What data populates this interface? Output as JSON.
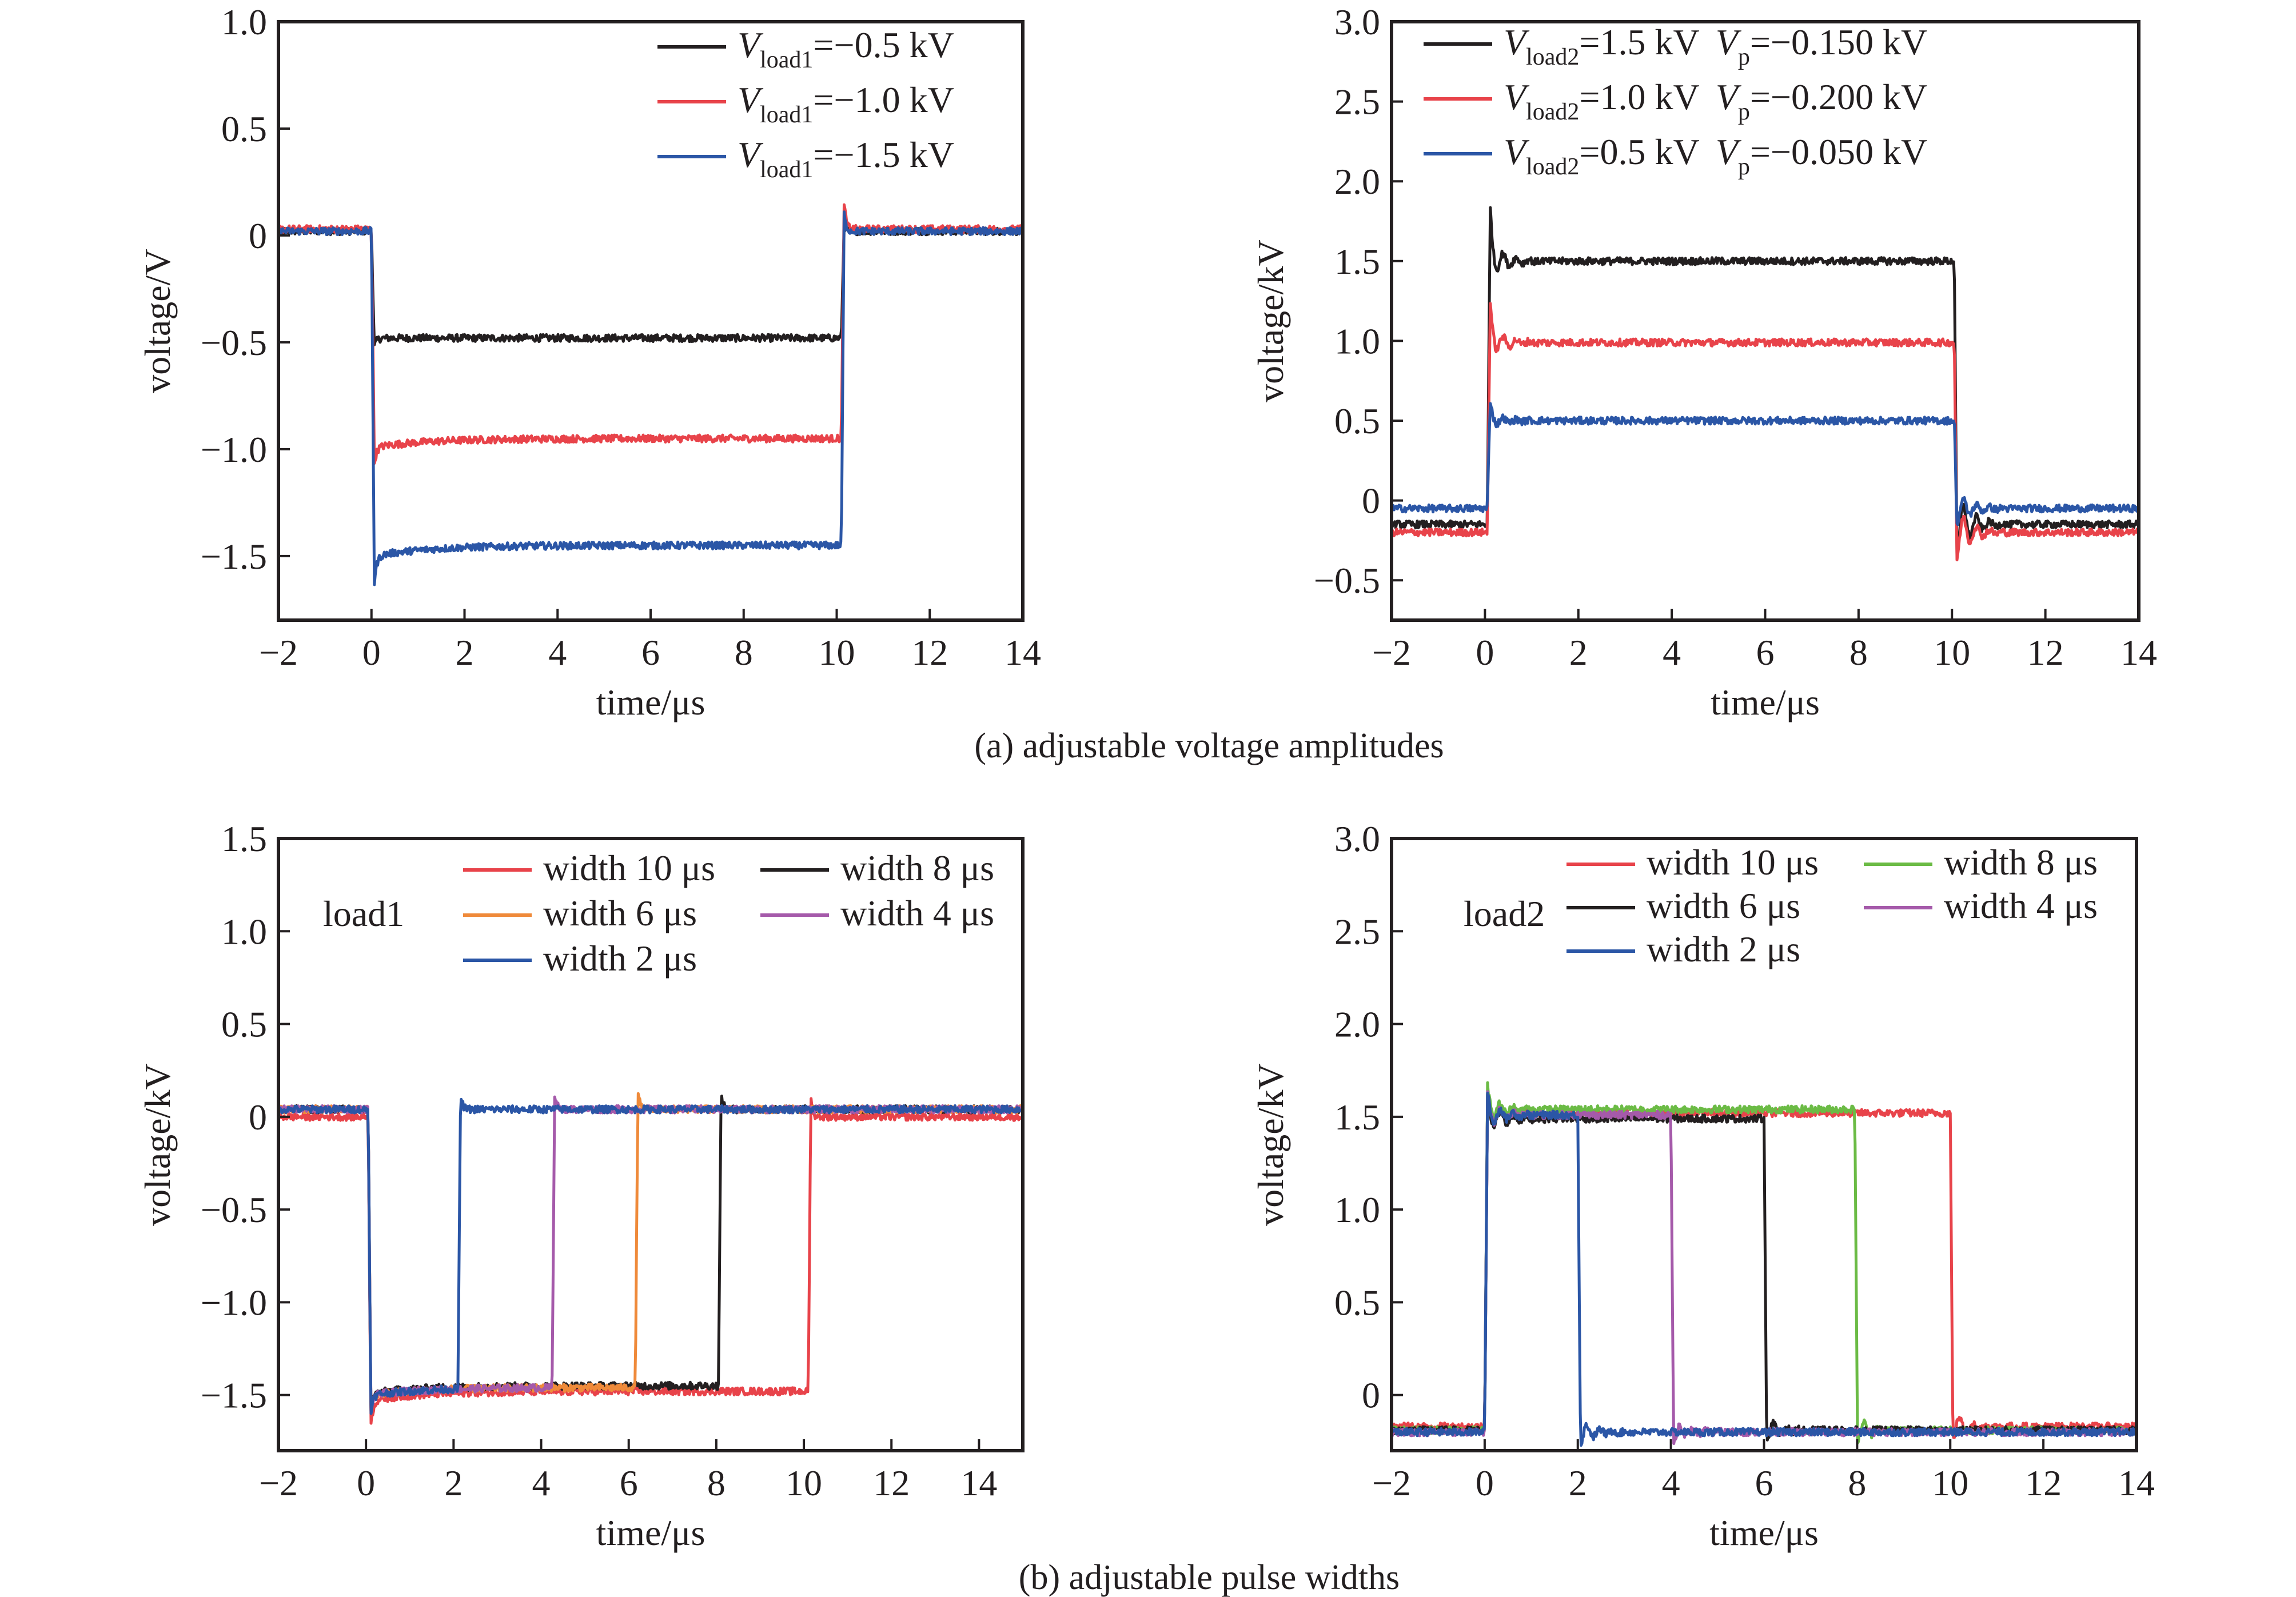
{
  "colors": {
    "black": "#231f20",
    "red": "#e8434a",
    "blue": "#2b56a6",
    "orange": "#ef8a3a",
    "purple": "#a55aaa",
    "green": "#6bbb45"
  },
  "captions": {
    "a": "(a) adjustable voltage amplitudes",
    "b": "(b) adjustable pulse widths"
  },
  "chart_data": [
    {
      "id": "a-left",
      "type": "line",
      "title": "",
      "xlabel": "time/μs",
      "ylabel": "voltage/V",
      "xlim": [
        -2,
        14
      ],
      "ylim": [
        -1.8,
        1.0
      ],
      "xticks": [
        -2,
        0,
        2,
        4,
        6,
        8,
        10,
        12,
        14
      ],
      "xtick_labels": [
        "−2",
        "0",
        "2",
        "4",
        "6",
        "8",
        "10",
        "12",
        "14"
      ],
      "yticks": [
        1.0,
        0.5,
        0,
        -0.5,
        -1.0,
        -1.5
      ],
      "ytick_labels": [
        "1.0",
        "0.5",
        "0",
        "−0.5",
        "−1.0",
        "−1.5"
      ],
      "legend_position": "top-right",
      "annotation": "",
      "series": [
        {
          "name": "V_load1=−0.5 kV",
          "sym": "V",
          "sub": "load1",
          "rest": "=−0.5 kV",
          "color": "#231f20",
          "base": 0.02,
          "level": -0.48,
          "start": 0.0,
          "end": 10.1,
          "overshoot": -0.52,
          "end_spike": 0.05,
          "droop": 0.0,
          "ring": 0
        },
        {
          "name": "V_load1=−1.0 kV",
          "sym": "V",
          "sub": "load1",
          "rest": "=−1.0 kV",
          "color": "#e8434a",
          "base": 0.03,
          "level": -0.95,
          "start": 0.0,
          "end": 10.1,
          "overshoot": -1.03,
          "end_spike": 0.16,
          "droop": -0.04,
          "ring": 0
        },
        {
          "name": "V_load1=−1.5 kV",
          "sym": "V",
          "sub": "load1",
          "rest": "=−1.5 kV",
          "color": "#2b56a6",
          "base": 0.02,
          "level": -1.45,
          "start": 0.0,
          "end": 10.1,
          "overshoot": -1.58,
          "end_spike": 0.1,
          "droop": -0.05,
          "ring": 0
        }
      ]
    },
    {
      "id": "a-right",
      "type": "line",
      "title": "",
      "xlabel": "time/μs",
      "ylabel": "voltage/kV",
      "xlim": [
        -2,
        14
      ],
      "ylim": [
        -0.75,
        3.0
      ],
      "xticks": [
        -2,
        0,
        2,
        4,
        6,
        8,
        10,
        12,
        14
      ],
      "xtick_labels": [
        "−2",
        "0",
        "2",
        "4",
        "6",
        "8",
        "10",
        "12",
        "14"
      ],
      "yticks": [
        3.0,
        2.5,
        2.0,
        1.5,
        1.0,
        0.5,
        0,
        -0.5
      ],
      "ytick_labels": [
        "3.0",
        "2.5",
        "2.0",
        "1.5",
        "1.0",
        "0.5",
        "0",
        "−0.5"
      ],
      "legend_position": "top-left",
      "annotation": "",
      "series": [
        {
          "name": "V_load2=1.5 kV V_p=−0.150 kV",
          "sym": "V",
          "sub": "load2",
          "rest": "=1.5 kV",
          "sym2": "V",
          "sub2": "p",
          "rest2": "=−0.150 kV",
          "color": "#231f20",
          "base": -0.15,
          "level": 1.5,
          "start": 0.05,
          "end": 10.05,
          "overshoot": 1.76,
          "end_spike": -0.47,
          "droop": 0.0,
          "ring": 0.1
        },
        {
          "name": "V_load2=1.0 kV V_p=−0.200 kV",
          "sym": "V",
          "sub": "load2",
          "rest": "=1.0 kV",
          "sym2": "V",
          "sub2": "p",
          "rest2": "=−0.200 kV",
          "color": "#e8434a",
          "base": -0.2,
          "level": 0.99,
          "start": 0.05,
          "end": 10.05,
          "overshoot": 1.18,
          "end_spike": -0.45,
          "droop": 0.0,
          "ring": 0.08
        },
        {
          "name": "V_load2=0.5 kV V_p=−0.050 kV",
          "sym": "V",
          "sub": "load2",
          "rest": "=0.5 kV",
          "sym2": "V",
          "sub2": "p",
          "rest2": "=−0.050 kV",
          "color": "#2b56a6",
          "base": -0.05,
          "level": 0.5,
          "start": 0.05,
          "end": 10.05,
          "overshoot": 0.6,
          "end_spike": -0.2,
          "droop": 0.0,
          "ring": 0.04
        }
      ]
    },
    {
      "id": "b-left",
      "type": "line",
      "title": "",
      "xlabel": "time/μs",
      "ylabel": "voltage/kV",
      "xlim": [
        -2,
        15
      ],
      "ylim": [
        -1.8,
        1.5
      ],
      "xticks": [
        -2,
        0,
        2,
        4,
        6,
        8,
        10,
        12,
        14
      ],
      "xtick_labels": [
        "−2",
        "0",
        "2",
        "4",
        "6",
        "8",
        "10",
        "12",
        "14"
      ],
      "yticks": [
        1.5,
        1.0,
        0.5,
        0,
        -0.5,
        -1.0,
        -1.5
      ],
      "ytick_labels": [
        "1.5",
        "1.0",
        "0.5",
        "0",
        "−0.5",
        "−1.0",
        "−1.5"
      ],
      "legend_position": "top-right",
      "annotation": "load1",
      "series": [
        {
          "name": "width 10 μs",
          "label": "width 10 μs",
          "color": "#e8434a",
          "base": 0.0,
          "level": -1.48,
          "start": 0.05,
          "end": 10.1,
          "overshoot": -1.63,
          "end_spike": 0.1,
          "droop": -0.05,
          "ring": 0
        },
        {
          "name": "width 8 μs",
          "label": "width 8 μs",
          "color": "#231f20",
          "base": 0.04,
          "level": -1.45,
          "start": 0.05,
          "end": 8.05,
          "overshoot": -1.55,
          "end_spike": 0.14,
          "droop": -0.04,
          "ring": 0
        },
        {
          "name": "width 6 μs",
          "label": "width 6 μs",
          "color": "#ef8a3a",
          "base": 0.04,
          "level": -1.46,
          "start": 0.05,
          "end": 6.15,
          "overshoot": -1.55,
          "end_spike": 0.15,
          "droop": -0.04,
          "ring": 0
        },
        {
          "name": "width 4 μs",
          "label": "width 4 μs",
          "color": "#a55aaa",
          "base": 0.04,
          "level": -1.46,
          "start": 0.05,
          "end": 4.25,
          "overshoot": -1.55,
          "end_spike": 0.14,
          "droop": -0.04,
          "ring": 0
        },
        {
          "name": "width 2 μs",
          "label": "width 2 μs",
          "color": "#2b56a6",
          "base": 0.04,
          "level": -1.46,
          "start": 0.05,
          "end": 2.1,
          "overshoot": -1.55,
          "end_spike": 0.13,
          "droop": -0.04,
          "ring": 0
        }
      ]
    },
    {
      "id": "b-right",
      "type": "line",
      "title": "",
      "xlabel": "time/μs",
      "ylabel": "voltage/kV",
      "xlim": [
        -2,
        14
      ],
      "ylim": [
        -0.3,
        3.0
      ],
      "xticks": [
        -2,
        0,
        2,
        4,
        6,
        8,
        10,
        12,
        14
      ],
      "xtick_labels": [
        "−2",
        "0",
        "2",
        "4",
        "6",
        "8",
        "10",
        "12",
        "14"
      ],
      "yticks": [
        3.0,
        2.5,
        2.0,
        1.5,
        1.0,
        0.5,
        0
      ],
      "ytick_labels": [
        "3.0",
        "2.5",
        "2.0",
        "1.5",
        "1.0",
        "0.5",
        "0"
      ],
      "legend_position": "top-right",
      "annotation": "load2",
      "series": [
        {
          "name": "width 10 μs",
          "label": "width 10 μs",
          "color": "#e8434a",
          "base": -0.17,
          "level": 1.52,
          "start": 0.0,
          "end": 10.0,
          "overshoot": 1.58,
          "end_spike": -0.3,
          "droop": 0.0,
          "ring": 0.07
        },
        {
          "name": "width 8 μs",
          "label": "width 8 μs",
          "color": "#6bbb45",
          "base": -0.19,
          "level": 1.54,
          "start": 0.0,
          "end": 7.95,
          "overshoot": 1.6,
          "end_spike": -0.3,
          "droop": 0.0,
          "ring": 0.07
        },
        {
          "name": "width 6 μs",
          "label": "width 6 μs",
          "color": "#231f20",
          "base": -0.19,
          "level": 1.49,
          "start": 0.0,
          "end": 6.0,
          "overshoot": 1.57,
          "end_spike": -0.3,
          "droop": 0.0,
          "ring": 0.07
        },
        {
          "name": "width 4 μs",
          "label": "width 4 μs",
          "color": "#a55aaa",
          "base": -0.2,
          "level": 1.51,
          "start": 0.0,
          "end": 4.0,
          "overshoot": 1.57,
          "end_spike": -0.3,
          "droop": 0.0,
          "ring": 0.07
        },
        {
          "name": "width 2 μs",
          "label": "width 2 μs",
          "color": "#2b56a6",
          "base": -0.2,
          "level": 1.51,
          "start": 0.0,
          "end": 2.0,
          "overshoot": 1.57,
          "end_spike": -0.3,
          "droop": 0.0,
          "ring": 0.07
        }
      ]
    }
  ]
}
